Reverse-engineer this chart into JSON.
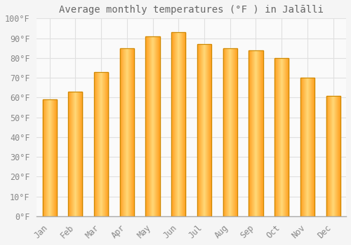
{
  "title": "Average monthly temperatures (°F ) in Jalālli",
  "months": [
    "Jan",
    "Feb",
    "Mar",
    "Apr",
    "May",
    "Jun",
    "Jul",
    "Aug",
    "Sep",
    "Oct",
    "Nov",
    "Dec"
  ],
  "values": [
    59,
    63,
    73,
    85,
    91,
    93,
    87,
    85,
    84,
    80,
    70,
    61
  ],
  "bar_color_main": "#FFA500",
  "bar_color_light": "#FFD070",
  "bar_edge_color": "#CC8800",
  "background_color": "#F5F5F5",
  "plot_bg_color": "#FAFAFA",
  "grid_color": "#E0E0E0",
  "text_color": "#888888",
  "title_color": "#666666",
  "ylim": [
    0,
    100
  ],
  "yticks": [
    0,
    10,
    20,
    30,
    40,
    50,
    60,
    70,
    80,
    90,
    100
  ],
  "title_fontsize": 10,
  "tick_fontsize": 8.5,
  "bar_width": 0.55
}
